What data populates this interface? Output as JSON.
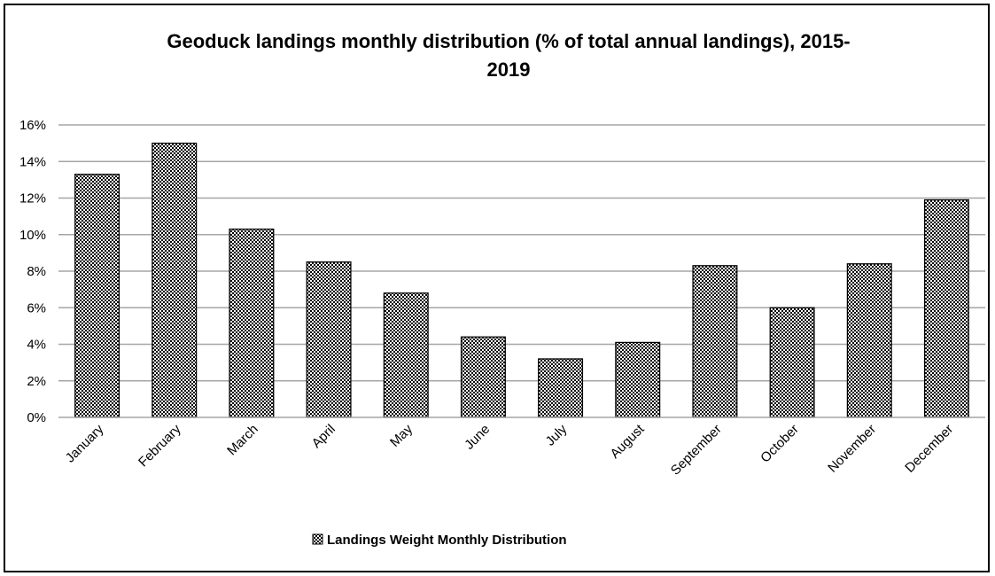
{
  "chart_data": {
    "type": "bar",
    "title_lines": [
      "Geoduck landings monthly distribution (% of total annual landings), 2015-",
      "2019"
    ],
    "xlabel": "",
    "ylabel": "",
    "categories": [
      "January",
      "February",
      "March",
      "April",
      "May",
      "June",
      "July",
      "August",
      "September",
      "October",
      "November",
      "December"
    ],
    "series": [
      {
        "name": "Landings Weight Monthly Distribution",
        "values": [
          13.3,
          15.0,
          10.3,
          8.5,
          6.8,
          4.4,
          3.2,
          4.1,
          8.3,
          6.0,
          8.4,
          11.9
        ]
      }
    ],
    "ylim": [
      0,
      16
    ],
    "yticks": [
      0,
      2,
      4,
      6,
      8,
      10,
      12,
      14,
      16
    ],
    "ytick_labels": [
      "0%",
      "2%",
      "4%",
      "6%",
      "8%",
      "10%",
      "12%",
      "14%",
      "16%"
    ],
    "grid": "horizontal",
    "legend_position": "bottom-center",
    "bar_fill": "checkered-pattern",
    "colors": {
      "bar_dark": "#000000",
      "bar_light": "#ffffff",
      "gridline": "#a6a6a6",
      "frame": "#000000"
    }
  }
}
